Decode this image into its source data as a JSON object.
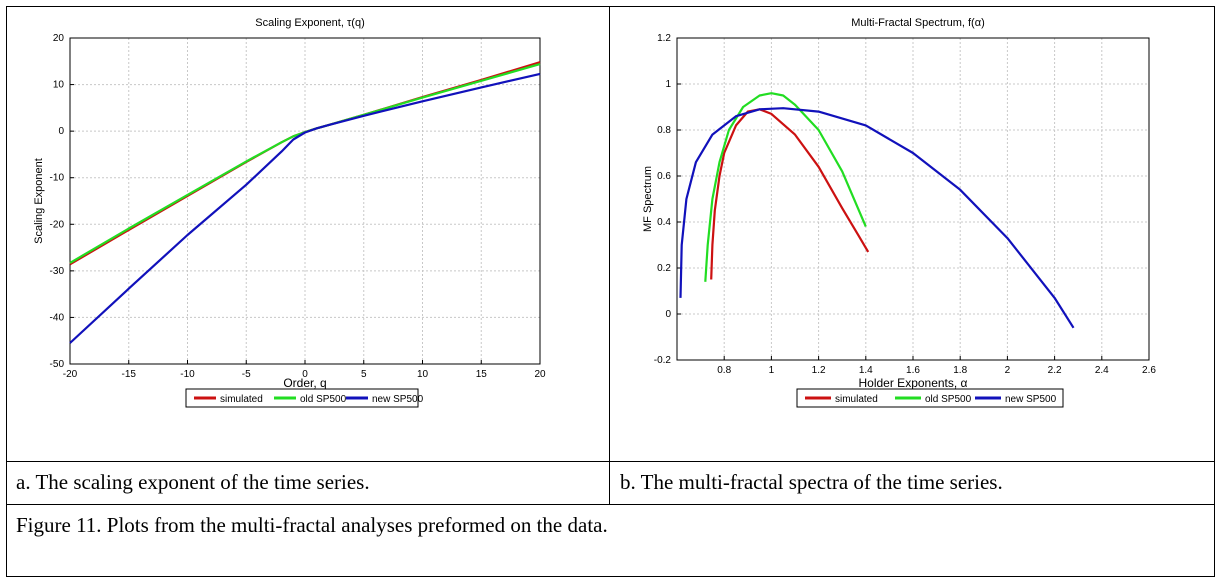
{
  "charts": [
    {
      "title": "Scaling Exponent, τ(q)",
      "xlabel": "Order, q",
      "ylabel": "Scaling Exponent",
      "legend": [
        "simulated",
        "old SP500",
        "new SP500"
      ]
    },
    {
      "title": "Multi-Fractal Spectrum, f(α)",
      "xlabel": "Holder Exponents, α",
      "ylabel": "MF Spectrum",
      "legend": [
        "simulated",
        "old SP500",
        "new SP500"
      ]
    }
  ],
  "captions": {
    "a": "a. The scaling exponent of the time series.",
    "b": "b. The multi-fractal spectra of the time series.",
    "figure": "Figure 11.  Plots from the multi-fractal analyses preformed on the data."
  },
  "colors": {
    "simulated": "#cc1111",
    "old_sp500": "#22dd22",
    "new_sp500": "#1111bb",
    "grid": "#c8c8c8"
  },
  "chart_data": [
    {
      "type": "line",
      "title": "Scaling Exponent, τ(q)",
      "xlabel": "Order, q",
      "ylabel": "Scaling Exponent",
      "xlim": [
        -20,
        20
      ],
      "ylim": [
        -50,
        20
      ],
      "xticks": [
        -20,
        -15,
        -10,
        -5,
        0,
        5,
        10,
        15,
        20
      ],
      "yticks": [
        -50,
        -40,
        -30,
        -20,
        -10,
        0,
        10,
        20
      ],
      "grid": true,
      "legend_position": "bottom",
      "series": [
        {
          "name": "simulated",
          "x": [
            -20,
            -15,
            -10,
            -5,
            -2,
            -1,
            0,
            1,
            2,
            5,
            10,
            15,
            20
          ],
          "y": [
            -28.6,
            -21.2,
            -13.9,
            -6.6,
            -2.4,
            -1.1,
            -0.2,
            0.6,
            1.3,
            3.5,
            7.3,
            11.0,
            14.8
          ]
        },
        {
          "name": "old SP500",
          "x": [
            -20,
            -15,
            -10,
            -5,
            -2,
            -1,
            0,
            1,
            2,
            5,
            10,
            15,
            20
          ],
          "y": [
            -28.3,
            -20.9,
            -13.7,
            -6.5,
            -2.4,
            -1.1,
            -0.2,
            0.6,
            1.3,
            3.5,
            7.2,
            10.8,
            14.4
          ]
        },
        {
          "name": "new SP500",
          "x": [
            -20,
            -15,
            -10,
            -5,
            -2,
            -1,
            0,
            1,
            2,
            5,
            10,
            15,
            20
          ],
          "y": [
            -45.5,
            -33.8,
            -22.3,
            -11.5,
            -4.4,
            -1.8,
            -0.3,
            0.6,
            1.3,
            3.3,
            6.4,
            9.4,
            12.3
          ]
        }
      ]
    },
    {
      "type": "line",
      "title": "Multi-Fractal Spectrum, f(α)",
      "xlabel": "Holder Exponents, α",
      "ylabel": "MF Spectrum",
      "xlim": [
        0.6,
        2.6
      ],
      "ylim": [
        -0.2,
        1.2
      ],
      "xticks": [
        0.8,
        1,
        1.2,
        1.4,
        1.6,
        1.8,
        2,
        2.2,
        2.4,
        2.6
      ],
      "yticks": [
        -0.2,
        0,
        0.2,
        0.4,
        0.6,
        0.8,
        1,
        1.2
      ],
      "grid": true,
      "legend_position": "bottom",
      "series": [
        {
          "name": "simulated",
          "x": [
            0.745,
            0.75,
            0.76,
            0.78,
            0.8,
            0.85,
            0.9,
            0.95,
            1.0,
            1.1,
            1.2,
            1.3,
            1.37,
            1.41
          ],
          "y": [
            0.15,
            0.3,
            0.45,
            0.6,
            0.7,
            0.82,
            0.88,
            0.89,
            0.87,
            0.78,
            0.64,
            0.46,
            0.34,
            0.27
          ]
        },
        {
          "name": "old SP500",
          "x": [
            0.72,
            0.73,
            0.75,
            0.78,
            0.82,
            0.88,
            0.95,
            1.0,
            1.05,
            1.1,
            1.2,
            1.3,
            1.4
          ],
          "y": [
            0.14,
            0.3,
            0.5,
            0.66,
            0.8,
            0.9,
            0.95,
            0.96,
            0.95,
            0.91,
            0.8,
            0.62,
            0.38
          ]
        },
        {
          "name": "new SP500",
          "x": [
            0.615,
            0.62,
            0.64,
            0.68,
            0.75,
            0.85,
            0.95,
            1.05,
            1.2,
            1.4,
            1.6,
            1.8,
            2.0,
            2.2,
            2.28
          ],
          "y": [
            0.07,
            0.3,
            0.5,
            0.66,
            0.78,
            0.86,
            0.89,
            0.895,
            0.88,
            0.82,
            0.7,
            0.54,
            0.33,
            0.07,
            -0.06
          ]
        }
      ]
    }
  ]
}
